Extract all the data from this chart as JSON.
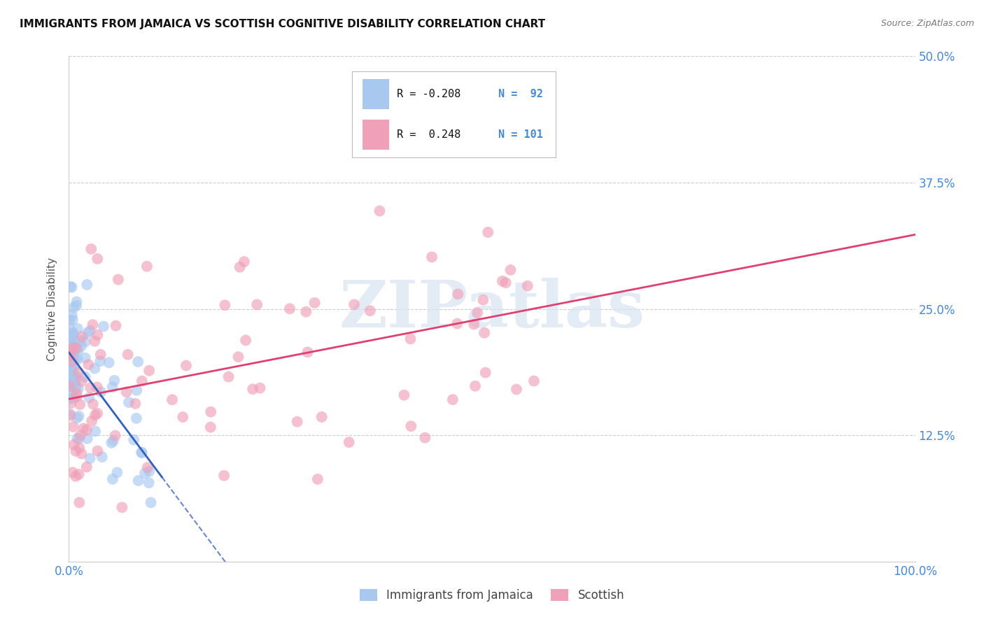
{
  "title": "IMMIGRANTS FROM JAMAICA VS SCOTTISH COGNITIVE DISABILITY CORRELATION CHART",
  "source": "Source: ZipAtlas.com",
  "ylabel": "Cognitive Disability",
  "blue_color": "#a8c8f0",
  "pink_color": "#f0a0b8",
  "blue_line_color": "#3060c0",
  "pink_line_color": "#e04070",
  "tick_label_color": "#4488dd",
  "grid_color": "#cccccc",
  "background_color": "#ffffff",
  "watermark": "ZIPatlas",
  "legend_blue_r": "R = -0.208",
  "legend_blue_n": "N =  92",
  "legend_pink_r": "R =  0.248",
  "legend_pink_n": "N = 101",
  "xlim": [
    0.0,
    1.0
  ],
  "ylim": [
    0.0,
    0.5
  ],
  "yticks": [
    0.0,
    0.125,
    0.25,
    0.375,
    0.5
  ],
  "ytick_labels_right": [
    "",
    "12.5%",
    "25.0%",
    "37.5%",
    "50.0%"
  ],
  "xtick_labels": [
    "0.0%",
    "",
    "",
    "",
    "100.0%"
  ]
}
